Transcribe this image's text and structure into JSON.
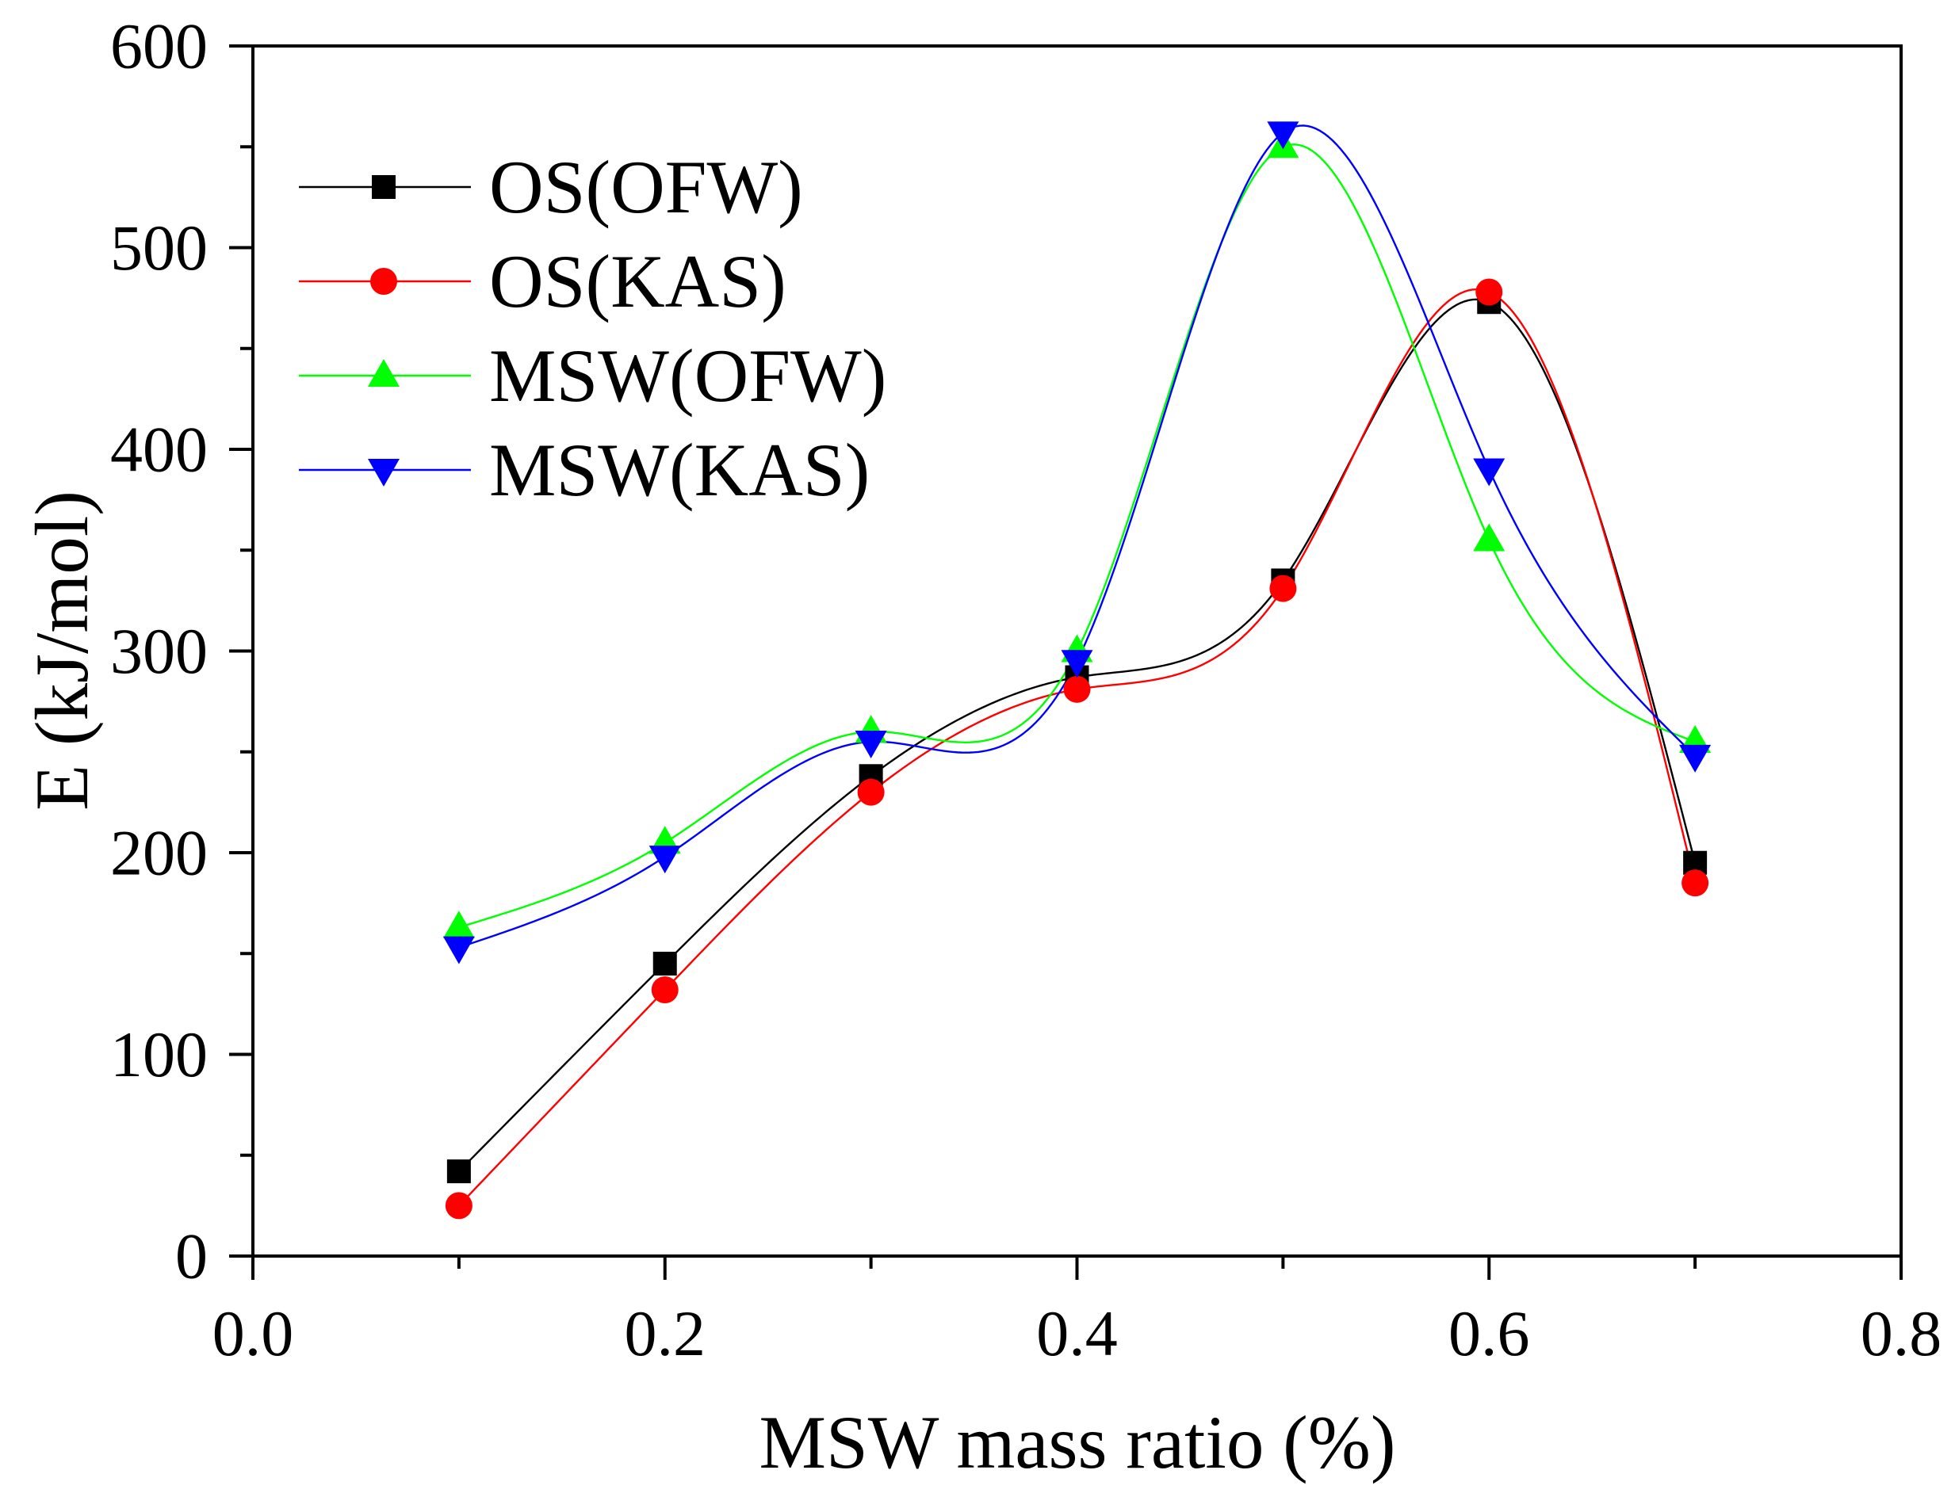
{
  "chart_data": {
    "type": "line",
    "title": "",
    "xlabel": "MSW mass ratio (%)",
    "ylabel": "E (kJ/mol)",
    "xlim": [
      0.0,
      0.8
    ],
    "ylim": [
      0,
      600
    ],
    "xticks": [
      0.0,
      0.2,
      0.4,
      0.6,
      0.8
    ],
    "xtick_labels": [
      "0.0",
      "0.2",
      "0.4",
      "0.6",
      "0.8"
    ],
    "yticks": [
      0,
      100,
      200,
      300,
      400,
      500,
      600
    ],
    "ytick_labels": [
      "0",
      "100",
      "200",
      "300",
      "400",
      "500",
      "600"
    ],
    "grid": false,
    "legend_position": "top-left",
    "x": [
      0.1,
      0.2,
      0.3,
      0.4,
      0.5,
      0.6,
      0.7
    ],
    "series": [
      {
        "name": "OS(OFW)",
        "color": "#000000",
        "marker": "square",
        "values": [
          42,
          145,
          238,
          287,
          335,
          473,
          195
        ]
      },
      {
        "name": "OS(KAS)",
        "color": "#ff0000",
        "marker": "circle",
        "values": [
          25,
          132,
          230,
          281,
          331,
          478,
          185
        ]
      },
      {
        "name": "MSW(OFW)",
        "color": "#00ff00",
        "marker": "triangle-up",
        "values": [
          163,
          205,
          260,
          300,
          550,
          355,
          255
        ]
      },
      {
        "name": "MSW(KAS)",
        "color": "#0000ff",
        "marker": "triangle-down",
        "values": [
          153,
          198,
          255,
          295,
          557,
          390,
          248
        ]
      }
    ]
  }
}
